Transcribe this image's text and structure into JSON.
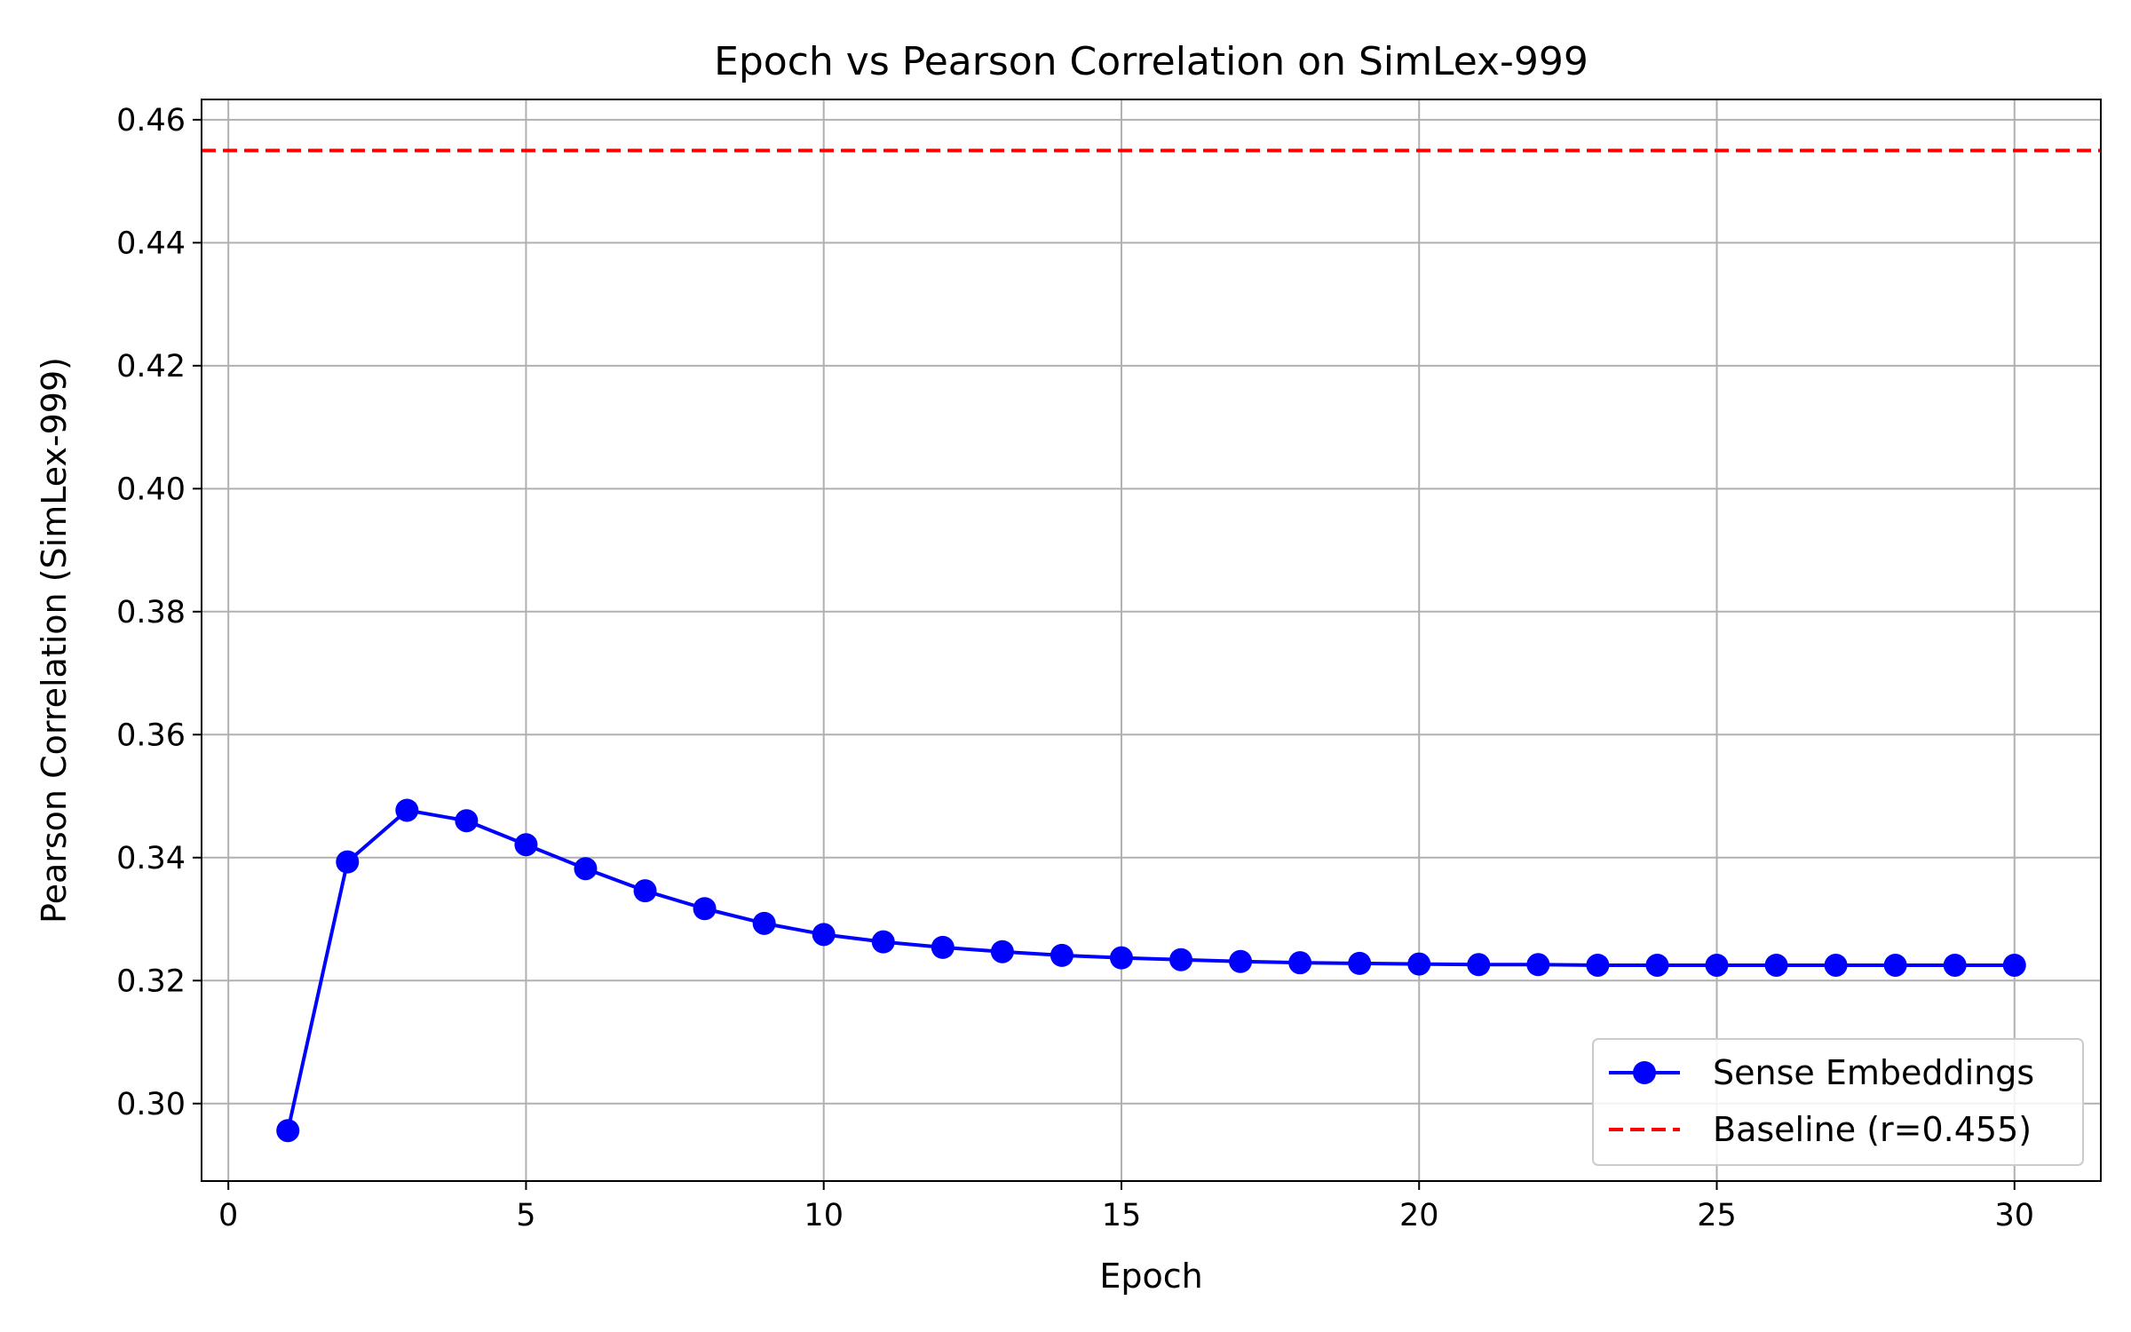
{
  "chart_data": {
    "type": "line",
    "title": "Epoch vs Pearson Correlation on SimLex-999",
    "xlabel": "Epoch",
    "ylabel": "Pearson Correlation (SimLex-999)",
    "xlim": [
      -0.45,
      31.45
    ],
    "ylim": [
      0.2874,
      0.4633
    ],
    "xticks": [
      0,
      5,
      10,
      15,
      20,
      25,
      30
    ],
    "xtick_labels": [
      "0",
      "5",
      "10",
      "15",
      "20",
      "25",
      "30"
    ],
    "yticks": [
      0.3,
      0.32,
      0.34,
      0.36,
      0.38,
      0.4,
      0.42,
      0.44,
      0.46
    ],
    "ytick_labels": [
      "0.30",
      "0.32",
      "0.34",
      "0.36",
      "0.38",
      "0.40",
      "0.42",
      "0.44",
      "0.46"
    ],
    "grid": true,
    "legend_position": "lower-right",
    "series": [
      {
        "name": "Sense Embeddings",
        "style": "line-marker",
        "color": "#0000ff",
        "x": [
          1,
          2,
          3,
          4,
          5,
          6,
          7,
          8,
          9,
          10,
          11,
          12,
          13,
          14,
          15,
          16,
          17,
          18,
          19,
          20,
          21,
          22,
          23,
          24,
          25,
          26,
          27,
          28,
          29,
          30
        ],
        "y": [
          0.2956,
          0.3393,
          0.3477,
          0.346,
          0.3421,
          0.3382,
          0.3346,
          0.3317,
          0.3293,
          0.3275,
          0.3263,
          0.3254,
          0.3247,
          0.3241,
          0.3237,
          0.3234,
          0.3231,
          0.3229,
          0.3228,
          0.3227,
          0.3226,
          0.3226,
          0.3225,
          0.3225,
          0.3225,
          0.3225,
          0.3225,
          0.3225,
          0.3225,
          0.3225
        ]
      }
    ],
    "reference_lines": [
      {
        "name": "Baseline (r=0.455)",
        "orientation": "horizontal",
        "y": 0.455,
        "style": "dashed",
        "color": "#ff0000"
      }
    ]
  }
}
